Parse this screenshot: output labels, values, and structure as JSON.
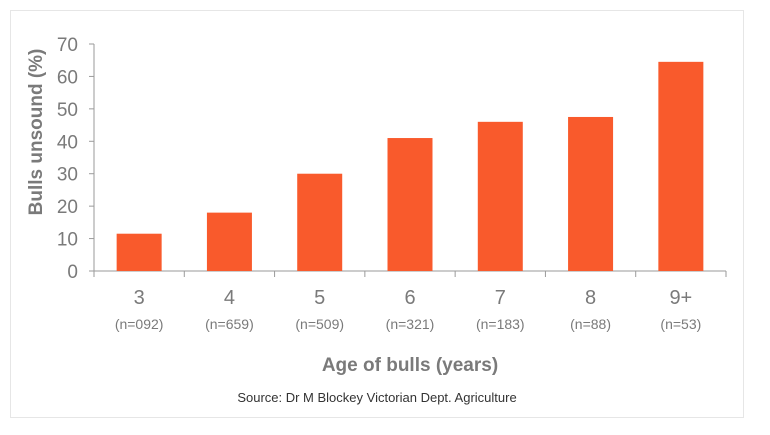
{
  "chart_data": {
    "type": "bar",
    "categories": [
      "3",
      "4",
      "5",
      "6",
      "7",
      "8",
      "9+"
    ],
    "category_sublabels": [
      "(n=092)",
      "(n=659)",
      "(n=509)",
      "(n=321)",
      "(n=183)",
      "(n=88)",
      "(n=53)"
    ],
    "values": [
      11.5,
      18,
      30,
      41,
      46,
      47.5,
      64.5
    ],
    "xlabel": "Age of bulls (years)",
    "ylabel": "Bulls unsound (%)",
    "ylim": [
      0,
      70
    ],
    "yticks": [
      0,
      10,
      20,
      30,
      40,
      50,
      60,
      70
    ],
    "grid": false,
    "bar_color": "#f95a2c",
    "source": "Source: Dr M Blockey Victorian Dept. Agriculture"
  }
}
